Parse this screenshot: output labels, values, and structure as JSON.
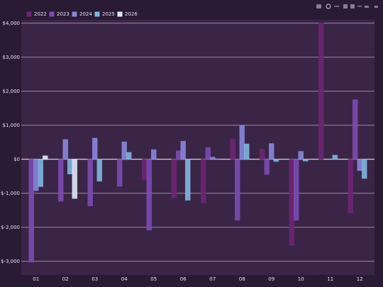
{
  "chart_data": {
    "type": "bar",
    "categories": [
      "01",
      "02",
      "03",
      "04",
      "05",
      "06",
      "07",
      "08",
      "09",
      "10",
      "11",
      "12"
    ],
    "series": [
      {
        "name": "2022",
        "color": "#6e2673",
        "values": [
          null,
          null,
          null,
          null,
          -600,
          -1130,
          -1280,
          600,
          290,
          -2530,
          4000,
          -1580
        ]
      },
      {
        "name": "2023",
        "color": "#7c4bb2",
        "values": [
          -3020,
          -1230,
          -1370,
          -790,
          -2080,
          250,
          340,
          -1790,
          -440,
          -1790,
          null,
          1750
        ]
      },
      {
        "name": "2024",
        "color": "#8a86da",
        "values": [
          -920,
          580,
          620,
          510,
          280,
          530,
          60,
          1000,
          460,
          230,
          null,
          -330
        ]
      },
      {
        "name": "2025",
        "color": "#7fb6e0",
        "values": [
          -800,
          -430,
          -640,
          200,
          null,
          -1200,
          10,
          450,
          -60,
          -50,
          120,
          -560
        ]
      },
      {
        "name": "2026",
        "color": "#dfe7f5",
        "values": [
          100,
          -1150,
          null,
          null,
          null,
          null,
          null,
          null,
          null,
          null,
          null,
          null
        ]
      }
    ],
    "ylim": [
      -3400,
      4100
    ],
    "yticks": [
      {
        "value": -3000,
        "label": "$-3,000"
      },
      {
        "value": -2000,
        "label": "$-2,000"
      },
      {
        "value": -1000,
        "label": "$-1,000"
      },
      {
        "value": 0,
        "label": "$0"
      },
      {
        "value": 1000,
        "label": "$1,000"
      },
      {
        "value": 2000,
        "label": "$2,000"
      },
      {
        "value": 3000,
        "label": "$3,000"
      },
      {
        "value": 4000,
        "label": "$4,000"
      }
    ],
    "grid": true,
    "legend": "top-left"
  }
}
